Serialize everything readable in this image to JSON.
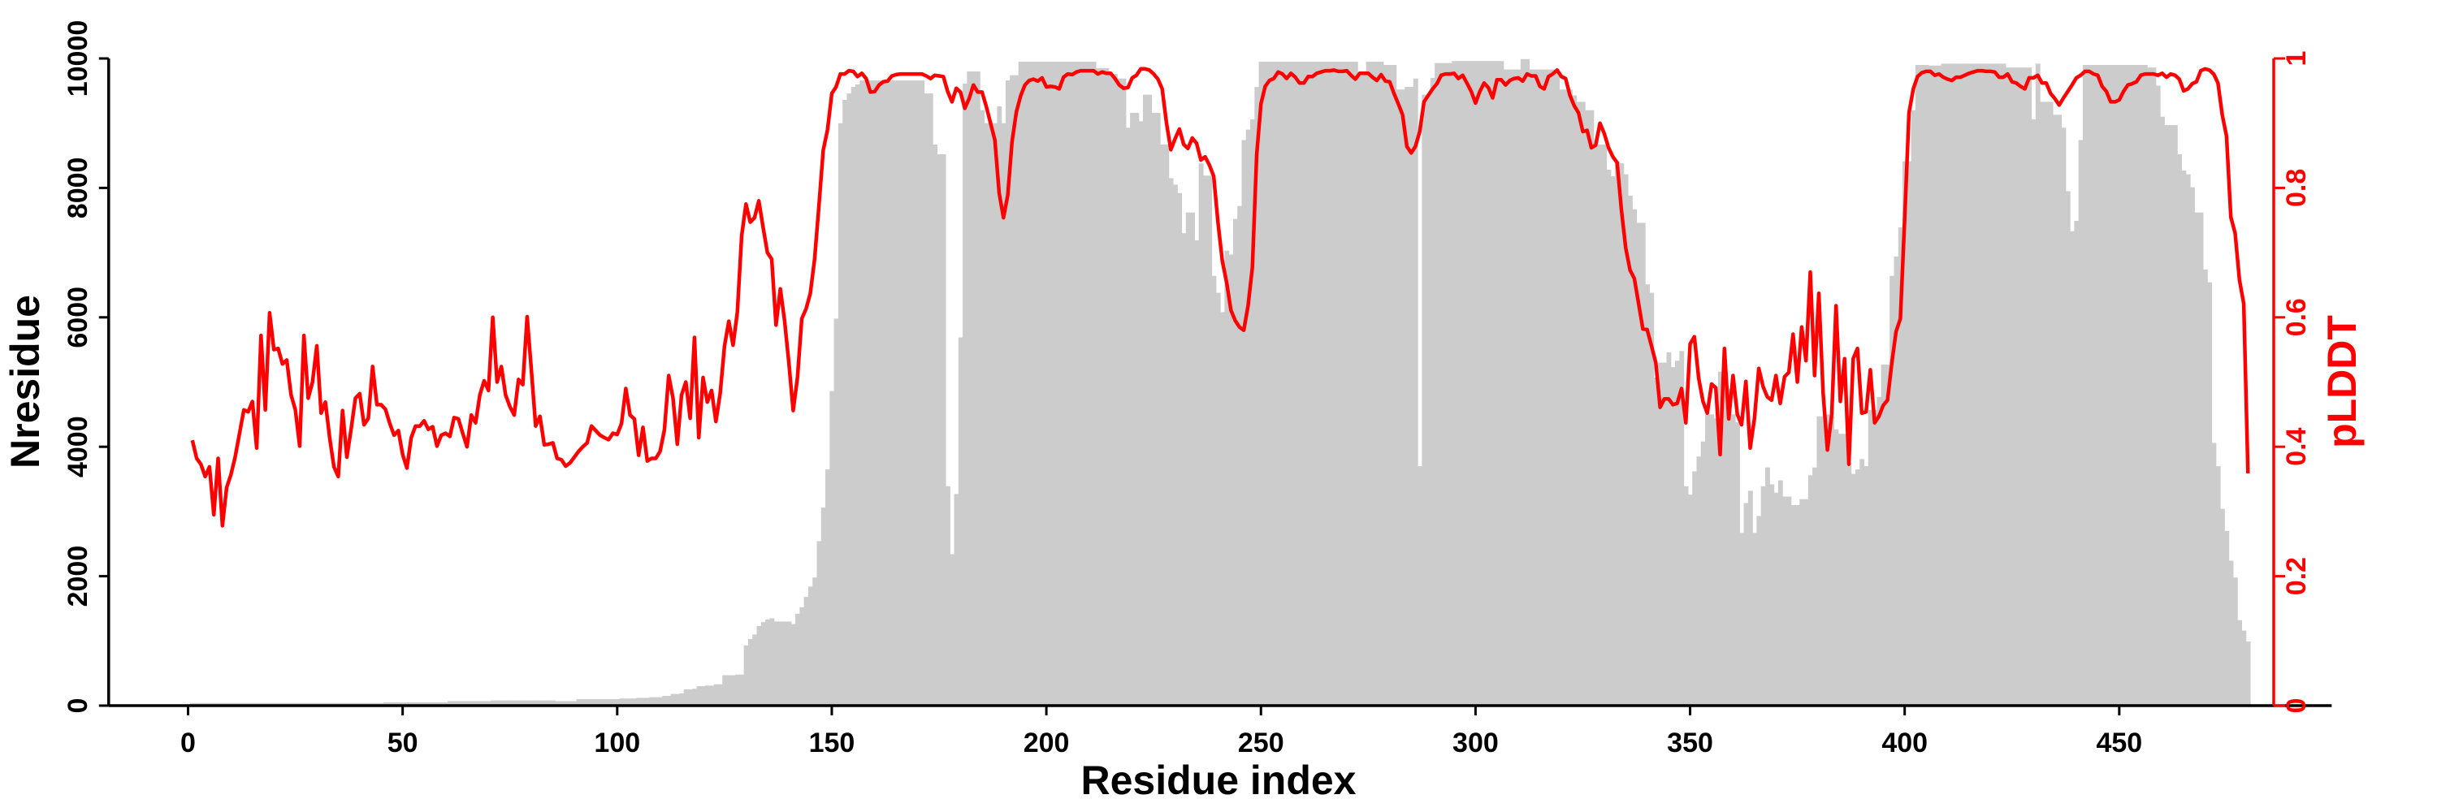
{
  "chart_data": {
    "type": "bar+line",
    "xlabel": "Residue index",
    "ylabel_left": "Nresidue",
    "ylabel_right": "pLDDT",
    "xlim": [
      -18.5,
      499.5
    ],
    "ylim_left": [
      0,
      10000
    ],
    "ylim_right": [
      0,
      1
    ],
    "x_ticks": [
      0,
      50,
      100,
      150,
      200,
      250,
      300,
      350,
      400,
      450
    ],
    "y_left_ticks": [
      0,
      2000,
      4000,
      6000,
      8000,
      10000
    ],
    "y_right_ticks": [
      "0",
      "0.2",
      "0.4",
      "0.6",
      "0.8",
      "1"
    ],
    "x_start": 1,
    "colors": {
      "bars": "#cccccc",
      "line": "#ff0000",
      "axis": "#000000"
    },
    "series": [
      {
        "name": "Nresidue",
        "type": "bar",
        "axis": "left",
        "values": [
          40,
          40,
          40,
          40,
          40,
          40,
          40,
          40,
          40,
          40,
          40,
          40,
          40,
          40,
          40,
          40,
          40,
          40,
          40,
          40,
          40,
          40,
          40,
          40,
          40,
          40,
          40,
          40,
          40,
          40,
          40,
          40,
          40,
          40,
          40,
          40,
          40,
          40,
          40,
          40,
          40,
          40,
          40,
          40,
          40,
          50,
          50,
          50,
          50,
          50,
          50,
          50,
          50,
          50,
          50,
          50,
          50,
          50,
          50,
          50,
          70,
          70,
          70,
          70,
          70,
          70,
          70,
          70,
          70,
          70,
          80,
          80,
          80,
          80,
          80,
          80,
          80,
          80,
          80,
          80,
          80,
          80,
          80,
          80,
          80,
          70,
          70,
          70,
          70,
          70,
          100,
          100,
          100,
          100,
          100,
          100,
          100,
          100,
          100,
          100,
          110,
          110,
          110,
          110,
          120,
          120,
          120,
          130,
          130,
          130,
          150,
          150,
          180,
          180,
          190,
          250,
          250,
          260,
          300,
          300,
          310,
          310,
          330,
          330,
          470,
          470,
          470,
          480,
          480,
          930,
          1030,
          1100,
          1230,
          1290,
          1330,
          1350,
          1300,
          1300,
          1300,
          1300,
          1260,
          1420,
          1520,
          1680,
          1840,
          1980,
          2540,
          3060,
          3650,
          4860,
          5980,
          9000,
          9360,
          9460,
          9560,
          9600,
          9660,
          9660,
          9660,
          9660,
          9660,
          9660,
          9660,
          9660,
          9660,
          9660,
          9660,
          9660,
          9660,
          9660,
          9660,
          9460,
          9460,
          8670,
          8520,
          8520,
          3390,
          2340,
          3270,
          5690,
          9610,
          9800,
          9800,
          9800,
          9200,
          9000,
          9000,
          9000,
          9260,
          9000,
          9660,
          9740,
          9740,
          9950,
          9950,
          9950,
          9950,
          9950,
          9950,
          9950,
          9950,
          9950,
          9950,
          9950,
          9950,
          9950,
          9950,
          9950,
          9950,
          9950,
          9950,
          9850,
          9850,
          9850,
          9760,
          9760,
          9690,
          9690,
          8930,
          9160,
          9160,
          9030,
          9440,
          9440,
          9160,
          9160,
          8670,
          8670,
          8150,
          8050,
          7920,
          7300,
          7620,
          7620,
          7190,
          8380,
          8190,
          8190,
          6640,
          6380,
          6080,
          7030,
          6970,
          7520,
          7720,
          8740,
          8900,
          9060,
          9560,
          9950,
          9950,
          9950,
          9950,
          9950,
          9950,
          9950,
          9950,
          9950,
          9950,
          9950,
          9950,
          9950,
          9950,
          9950,
          9950,
          9950,
          9950,
          9950,
          9950,
          9950,
          9950,
          9950,
          9760,
          9760,
          9950,
          9950,
          9950,
          9950,
          9900,
          9900,
          9900,
          9520,
          9520,
          9560,
          9560,
          9690,
          3700,
          9440,
          9440,
          9700,
          9930,
          9930,
          9930,
          9930,
          9960,
          9960,
          9960,
          9960,
          9960,
          9960,
          9960,
          9960,
          9960,
          9960,
          9960,
          9960,
          9830,
          9830,
          9830,
          9830,
          9990,
          9990,
          9830,
          9830,
          9830,
          9830,
          9830,
          9830,
          9830,
          9520,
          9520,
          9520,
          9430,
          9330,
          9330,
          9200,
          9200,
          8670,
          8670,
          8670,
          8280,
          8180,
          8410,
          8380,
          8210,
          7880,
          7670,
          7460,
          7460,
          6510,
          6380,
          5070,
          5300,
          5300,
          5460,
          5230,
          5330,
          5480,
          3390,
          3260,
          3620,
          3850,
          4080,
          4500,
          4500,
          4440,
          5160,
          5160,
          4900,
          4500,
          4380,
          2670,
          3130,
          3320,
          2670,
          2930,
          3390,
          3680,
          3420,
          3290,
          3480,
          3230,
          3230,
          3100,
          3100,
          3190,
          3190,
          3560,
          3680,
          4470,
          4470,
          4500,
          4470,
          4270,
          4200,
          4200,
          3750,
          3580,
          3650,
          3810,
          3700,
          4570,
          4570,
          4770,
          5270,
          5270,
          6640,
          6940,
          7390,
          8410,
          8410,
          9200,
          9900,
          9900,
          9900,
          9890,
          9890,
          9890,
          9920,
          9920,
          9920,
          9920,
          9920,
          9920,
          9920,
          9920,
          9920,
          9920,
          9920,
          9920,
          9920,
          9920,
          9920,
          9860,
          9860,
          9860,
          9860,
          9860,
          9860,
          9060,
          9920,
          9330,
          9330,
          9330,
          9130,
          9130,
          8930,
          7950,
          7330,
          7490,
          8740,
          9900,
          9900,
          9900,
          9900,
          9900,
          9900,
          9900,
          9900,
          9900,
          9900,
          9900,
          9900,
          9900,
          9900,
          9900,
          9860,
          9860,
          9580,
          9100,
          8970,
          8970,
          8970,
          8520,
          8270,
          8210,
          8010,
          7620,
          7620,
          6740,
          6540,
          4060,
          3700,
          3040,
          2700,
          2240,
          1980,
          1320,
          1160,
          990
        ]
      },
      {
        "name": "pLDDT",
        "type": "line",
        "axis": "right",
        "values": [
          0.41,
          0.382,
          0.373,
          0.354,
          0.369,
          0.295,
          0.382,
          0.278,
          0.337,
          0.357,
          0.385,
          0.421,
          0.457,
          0.454,
          0.47,
          0.398,
          0.572,
          0.457,
          0.607,
          0.55,
          0.552,
          0.528,
          0.534,
          0.48,
          0.457,
          0.401,
          0.572,
          0.475,
          0.5,
          0.556,
          0.452,
          0.469,
          0.414,
          0.369,
          0.354,
          0.456,
          0.384,
          0.428,
          0.475,
          0.482,
          0.434,
          0.444,
          0.524,
          0.465,
          0.465,
          0.458,
          0.436,
          0.418,
          0.425,
          0.388,
          0.367,
          0.414,
          0.432,
          0.432,
          0.44,
          0.427,
          0.431,
          0.401,
          0.418,
          0.421,
          0.416,
          0.445,
          0.443,
          0.421,
          0.4,
          0.449,
          0.437,
          0.48,
          0.502,
          0.487,
          0.6,
          0.5,
          0.524,
          0.48,
          0.462,
          0.449,
          0.504,
          0.496,
          0.601,
          0.519,
          0.432,
          0.447,
          0.403,
          0.404,
          0.406,
          0.382,
          0.38,
          0.37,
          0.375,
          0.384,
          0.393,
          0.4,
          0.406,
          0.432,
          0.425,
          0.418,
          0.414,
          0.411,
          0.421,
          0.419,
          0.436,
          0.49,
          0.449,
          0.443,
          0.387,
          0.43,
          0.378,
          0.382,
          0.382,
          0.393,
          0.426,
          0.51,
          0.475,
          0.404,
          0.48,
          0.5,
          0.444,
          0.569,
          0.414,
          0.507,
          0.469,
          0.487,
          0.439,
          0.483,
          0.556,
          0.594,
          0.557,
          0.608,
          0.726,
          0.775,
          0.747,
          0.754,
          0.78,
          0.739,
          0.7,
          0.69,
          0.588,
          0.644,
          0.595,
          0.53,
          0.456,
          0.507,
          0.598,
          0.613,
          0.637,
          0.69,
          0.772,
          0.858,
          0.89,
          0.946,
          0.956,
          0.976,
          0.976,
          0.981,
          0.98,
          0.972,
          0.977,
          0.969,
          0.948,
          0.949,
          0.959,
          0.964,
          0.965,
          0.973,
          0.975,
          0.976,
          0.976,
          0.976,
          0.976,
          0.976,
          0.976,
          0.973,
          0.969,
          0.974,
          0.973,
          0.972,
          0.949,
          0.933,
          0.954,
          0.948,
          0.923,
          0.938,
          0.959,
          0.948,
          0.948,
          0.926,
          0.9,
          0.874,
          0.792,
          0.754,
          0.789,
          0.871,
          0.917,
          0.942,
          0.959,
          0.966,
          0.968,
          0.965,
          0.97,
          0.956,
          0.957,
          0.956,
          0.953,
          0.971,
          0.976,
          0.975,
          0.979,
          0.981,
          0.981,
          0.981,
          0.981,
          0.976,
          0.979,
          0.977,
          0.977,
          0.969,
          0.959,
          0.954,
          0.955,
          0.97,
          0.974,
          0.984,
          0.984,
          0.982,
          0.976,
          0.968,
          0.953,
          0.9,
          0.859,
          0.876,
          0.891,
          0.867,
          0.861,
          0.877,
          0.869,
          0.843,
          0.848,
          0.835,
          0.818,
          0.746,
          0.687,
          0.654,
          0.611,
          0.595,
          0.585,
          0.58,
          0.618,
          0.677,
          0.851,
          0.93,
          0.957,
          0.966,
          0.969,
          0.979,
          0.976,
          0.969,
          0.977,
          0.971,
          0.962,
          0.962,
          0.972,
          0.972,
          0.977,
          0.979,
          0.981,
          0.981,
          0.982,
          0.98,
          0.98,
          0.981,
          0.974,
          0.968,
          0.977,
          0.977,
          0.977,
          0.971,
          0.966,
          0.975,
          0.965,
          0.964,
          0.946,
          0.93,
          0.913,
          0.864,
          0.854,
          0.864,
          0.887,
          0.933,
          0.943,
          0.953,
          0.961,
          0.974,
          0.976,
          0.976,
          0.977,
          0.969,
          0.974,
          0.962,
          0.949,
          0.931,
          0.949,
          0.962,
          0.955,
          0.939,
          0.967,
          0.967,
          0.959,
          0.966,
          0.969,
          0.97,
          0.965,
          0.976,
          0.973,
          0.973,
          0.957,
          0.953,
          0.972,
          0.976,
          0.982,
          0.972,
          0.969,
          0.943,
          0.927,
          0.916,
          0.887,
          0.889,
          0.862,
          0.866,
          0.9,
          0.884,
          0.862,
          0.848,
          0.839,
          0.766,
          0.707,
          0.673,
          0.66,
          0.621,
          0.582,
          0.581,
          0.556,
          0.53,
          0.461,
          0.474,
          0.474,
          0.465,
          0.467,
          0.49,
          0.437,
          0.559,
          0.57,
          0.506,
          0.47,
          0.452,
          0.497,
          0.491,
          0.388,
          0.552,
          0.443,
          0.51,
          0.45,
          0.434,
          0.501,
          0.398,
          0.444,
          0.521,
          0.493,
          0.477,
          0.472,
          0.51,
          0.467,
          0.508,
          0.515,
          0.574,
          0.5,
          0.585,
          0.533,
          0.67,
          0.51,
          0.637,
          0.483,
          0.395,
          0.45,
          0.618,
          0.47,
          0.536,
          0.373,
          0.536,
          0.552,
          0.452,
          0.454,
          0.519,
          0.437,
          0.447,
          0.464,
          0.472,
          0.53,
          0.578,
          0.598,
          0.752,
          0.916,
          0.953,
          0.972,
          0.978,
          0.98,
          0.98,
          0.974,
          0.976,
          0.971,
          0.968,
          0.966,
          0.971,
          0.971,
          0.974,
          0.977,
          0.979,
          0.981,
          0.981,
          0.98,
          0.98,
          0.979,
          0.971,
          0.971,
          0.976,
          0.964,
          0.962,
          0.957,
          0.953,
          0.97,
          0.97,
          0.974,
          0.962,
          0.962,
          0.946,
          0.938,
          0.928,
          0.939,
          0.949,
          0.959,
          0.97,
          0.974,
          0.98,
          0.98,
          0.976,
          0.974,
          0.957,
          0.949,
          0.933,
          0.933,
          0.936,
          0.949,
          0.959,
          0.961,
          0.964,
          0.974,
          0.976,
          0.976,
          0.976,
          0.974,
          0.977,
          0.971,
          0.976,
          0.974,
          0.968,
          0.95,
          0.953,
          0.961,
          0.964,
          0.981,
          0.984,
          0.982,
          0.976,
          0.962,
          0.913,
          0.88,
          0.755,
          0.73,
          0.658,
          0.621,
          0.359
        ]
      }
    ]
  }
}
